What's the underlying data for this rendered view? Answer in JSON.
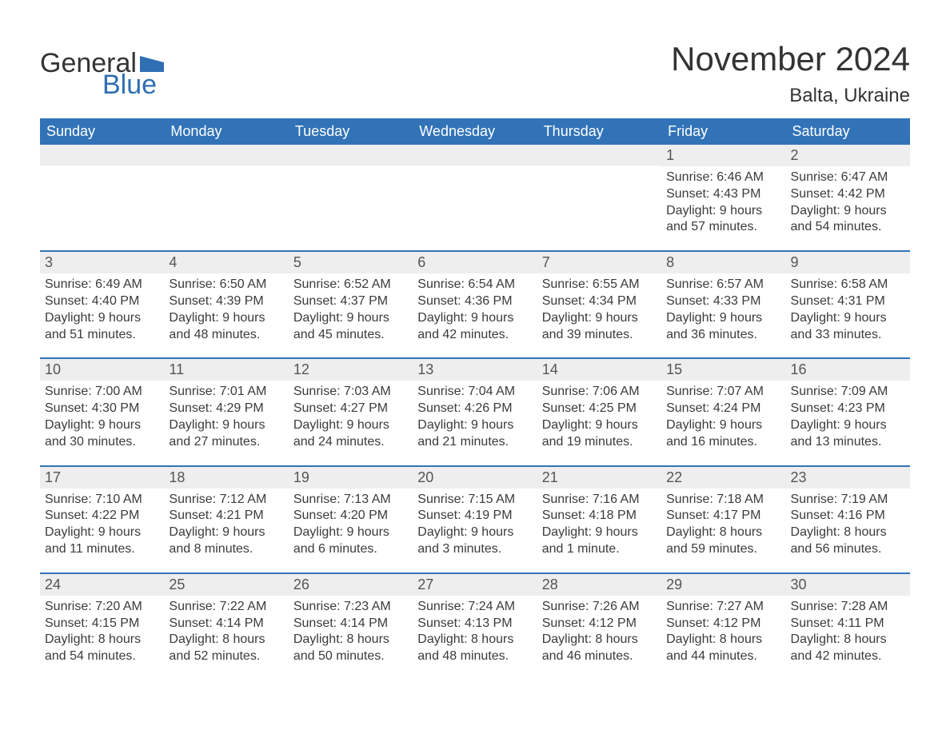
{
  "brand": {
    "word1": "General",
    "word2": "Blue"
  },
  "title": "November 2024",
  "location": "Balta, Ukraine",
  "colors": {
    "header_bg": "#3273b8",
    "header_text": "#ffffff",
    "daynum_bg": "#eeeeee",
    "border": "#3273b8",
    "body_text": "#3b3b3b",
    "title_text": "#333333",
    "logo_blue": "#2f6fb3",
    "background": "#ffffff"
  },
  "fonts": {
    "title_size_pt": 32,
    "location_size_pt": 18,
    "header_size_pt": 14,
    "daynum_size_pt": 14,
    "body_size_pt": 12
  },
  "weekdays": [
    "Sunday",
    "Monday",
    "Tuesday",
    "Wednesday",
    "Thursday",
    "Friday",
    "Saturday"
  ],
  "weeks": [
    [
      {
        "empty": true
      },
      {
        "empty": true
      },
      {
        "empty": true
      },
      {
        "empty": true
      },
      {
        "empty": true
      },
      {
        "n": "1",
        "sunrise": "Sunrise: 6:46 AM",
        "sunset": "Sunset: 4:43 PM",
        "dl1": "Daylight: 9 hours",
        "dl2": "and 57 minutes."
      },
      {
        "n": "2",
        "sunrise": "Sunrise: 6:47 AM",
        "sunset": "Sunset: 4:42 PM",
        "dl1": "Daylight: 9 hours",
        "dl2": "and 54 minutes."
      }
    ],
    [
      {
        "n": "3",
        "sunrise": "Sunrise: 6:49 AM",
        "sunset": "Sunset: 4:40 PM",
        "dl1": "Daylight: 9 hours",
        "dl2": "and 51 minutes."
      },
      {
        "n": "4",
        "sunrise": "Sunrise: 6:50 AM",
        "sunset": "Sunset: 4:39 PM",
        "dl1": "Daylight: 9 hours",
        "dl2": "and 48 minutes."
      },
      {
        "n": "5",
        "sunrise": "Sunrise: 6:52 AM",
        "sunset": "Sunset: 4:37 PM",
        "dl1": "Daylight: 9 hours",
        "dl2": "and 45 minutes."
      },
      {
        "n": "6",
        "sunrise": "Sunrise: 6:54 AM",
        "sunset": "Sunset: 4:36 PM",
        "dl1": "Daylight: 9 hours",
        "dl2": "and 42 minutes."
      },
      {
        "n": "7",
        "sunrise": "Sunrise: 6:55 AM",
        "sunset": "Sunset: 4:34 PM",
        "dl1": "Daylight: 9 hours",
        "dl2": "and 39 minutes."
      },
      {
        "n": "8",
        "sunrise": "Sunrise: 6:57 AM",
        "sunset": "Sunset: 4:33 PM",
        "dl1": "Daylight: 9 hours",
        "dl2": "and 36 minutes."
      },
      {
        "n": "9",
        "sunrise": "Sunrise: 6:58 AM",
        "sunset": "Sunset: 4:31 PM",
        "dl1": "Daylight: 9 hours",
        "dl2": "and 33 minutes."
      }
    ],
    [
      {
        "n": "10",
        "sunrise": "Sunrise: 7:00 AM",
        "sunset": "Sunset: 4:30 PM",
        "dl1": "Daylight: 9 hours",
        "dl2": "and 30 minutes."
      },
      {
        "n": "11",
        "sunrise": "Sunrise: 7:01 AM",
        "sunset": "Sunset: 4:29 PM",
        "dl1": "Daylight: 9 hours",
        "dl2": "and 27 minutes."
      },
      {
        "n": "12",
        "sunrise": "Sunrise: 7:03 AM",
        "sunset": "Sunset: 4:27 PM",
        "dl1": "Daylight: 9 hours",
        "dl2": "and 24 minutes."
      },
      {
        "n": "13",
        "sunrise": "Sunrise: 7:04 AM",
        "sunset": "Sunset: 4:26 PM",
        "dl1": "Daylight: 9 hours",
        "dl2": "and 21 minutes."
      },
      {
        "n": "14",
        "sunrise": "Sunrise: 7:06 AM",
        "sunset": "Sunset: 4:25 PM",
        "dl1": "Daylight: 9 hours",
        "dl2": "and 19 minutes."
      },
      {
        "n": "15",
        "sunrise": "Sunrise: 7:07 AM",
        "sunset": "Sunset: 4:24 PM",
        "dl1": "Daylight: 9 hours",
        "dl2": "and 16 minutes."
      },
      {
        "n": "16",
        "sunrise": "Sunrise: 7:09 AM",
        "sunset": "Sunset: 4:23 PM",
        "dl1": "Daylight: 9 hours",
        "dl2": "and 13 minutes."
      }
    ],
    [
      {
        "n": "17",
        "sunrise": "Sunrise: 7:10 AM",
        "sunset": "Sunset: 4:22 PM",
        "dl1": "Daylight: 9 hours",
        "dl2": "and 11 minutes."
      },
      {
        "n": "18",
        "sunrise": "Sunrise: 7:12 AM",
        "sunset": "Sunset: 4:21 PM",
        "dl1": "Daylight: 9 hours",
        "dl2": "and 8 minutes."
      },
      {
        "n": "19",
        "sunrise": "Sunrise: 7:13 AM",
        "sunset": "Sunset: 4:20 PM",
        "dl1": "Daylight: 9 hours",
        "dl2": "and 6 minutes."
      },
      {
        "n": "20",
        "sunrise": "Sunrise: 7:15 AM",
        "sunset": "Sunset: 4:19 PM",
        "dl1": "Daylight: 9 hours",
        "dl2": "and 3 minutes."
      },
      {
        "n": "21",
        "sunrise": "Sunrise: 7:16 AM",
        "sunset": "Sunset: 4:18 PM",
        "dl1": "Daylight: 9 hours",
        "dl2": "and 1 minute."
      },
      {
        "n": "22",
        "sunrise": "Sunrise: 7:18 AM",
        "sunset": "Sunset: 4:17 PM",
        "dl1": "Daylight: 8 hours",
        "dl2": "and 59 minutes."
      },
      {
        "n": "23",
        "sunrise": "Sunrise: 7:19 AM",
        "sunset": "Sunset: 4:16 PM",
        "dl1": "Daylight: 8 hours",
        "dl2": "and 56 minutes."
      }
    ],
    [
      {
        "n": "24",
        "sunrise": "Sunrise: 7:20 AM",
        "sunset": "Sunset: 4:15 PM",
        "dl1": "Daylight: 8 hours",
        "dl2": "and 54 minutes."
      },
      {
        "n": "25",
        "sunrise": "Sunrise: 7:22 AM",
        "sunset": "Sunset: 4:14 PM",
        "dl1": "Daylight: 8 hours",
        "dl2": "and 52 minutes."
      },
      {
        "n": "26",
        "sunrise": "Sunrise: 7:23 AM",
        "sunset": "Sunset: 4:14 PM",
        "dl1": "Daylight: 8 hours",
        "dl2": "and 50 minutes."
      },
      {
        "n": "27",
        "sunrise": "Sunrise: 7:24 AM",
        "sunset": "Sunset: 4:13 PM",
        "dl1": "Daylight: 8 hours",
        "dl2": "and 48 minutes."
      },
      {
        "n": "28",
        "sunrise": "Sunrise: 7:26 AM",
        "sunset": "Sunset: 4:12 PM",
        "dl1": "Daylight: 8 hours",
        "dl2": "and 46 minutes."
      },
      {
        "n": "29",
        "sunrise": "Sunrise: 7:27 AM",
        "sunset": "Sunset: 4:12 PM",
        "dl1": "Daylight: 8 hours",
        "dl2": "and 44 minutes."
      },
      {
        "n": "30",
        "sunrise": "Sunrise: 7:28 AM",
        "sunset": "Sunset: 4:11 PM",
        "dl1": "Daylight: 8 hours",
        "dl2": "and 42 minutes."
      }
    ]
  ]
}
